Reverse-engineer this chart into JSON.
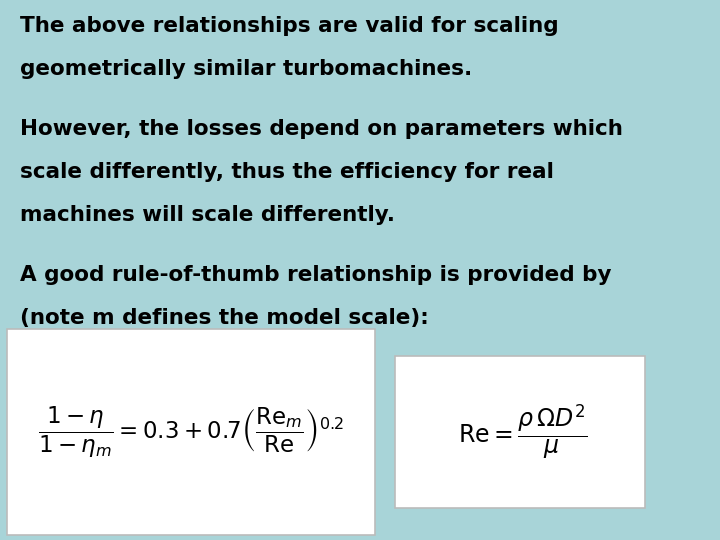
{
  "bg_color": "#a8d4d8",
  "box_color": "#ffffff",
  "text_color": "#000000",
  "font_size_text": 15.5,
  "line1": "The above relationships are valid for scaling",
  "line2": "geometrically similar turbomachines.",
  "line3": "However, the losses depend on parameters which",
  "line4": "scale differently, thus the efficiency for real",
  "line5": "machines will scale differently.",
  "line6": "A good rule-of-thumb relationship is provided by",
  "line7": "(note m defines the model scale):",
  "formula1": "$\\dfrac{1-\\eta}{1-\\eta_m} = 0.3 + 0.7\\left(\\dfrac{\\mathrm{Re}_m}{\\mathrm{Re}}\\right)^{0.2}$",
  "formula2": "$\\mathrm{Re} = \\dfrac{\\rho\\,\\Omega D^2}{\\mu}$"
}
